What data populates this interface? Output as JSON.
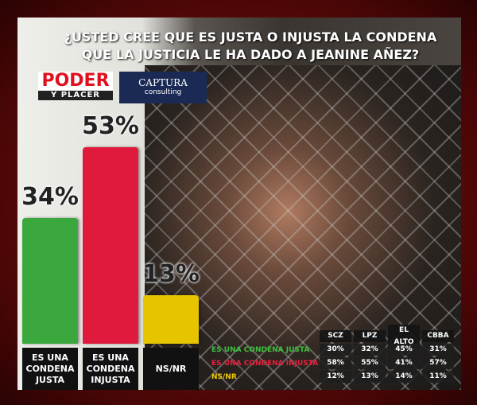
{
  "chart_data": {
    "type": "bar",
    "title": "¿USTED CREE QUE ES JUSTA O INJUSTA LA CONDENA QUE LA JUSTICIA LE HA DADO A JEANINE AÑEZ?",
    "logos": [
      "PODER",
      "Y PLACER",
      "CAPTURA",
      "consulting"
    ],
    "categories": [
      "ES UNA CONDENA JUSTA",
      "ES UNA CONDENA INJUSTA",
      "NS/NR"
    ],
    "values": [
      34,
      53,
      13
    ],
    "value_labels": [
      "34%",
      "53%",
      "13%"
    ],
    "colors": [
      "#3aa83c",
      "#e01a3c",
      "#e6c400"
    ],
    "table": {
      "columns": [
        "SCZ",
        "LPZ",
        "EL ALTO",
        "CBBA"
      ],
      "rows": [
        {
          "label": "ES UNA CONDENA JUSTA",
          "color": "#3fc03f",
          "values": [
            "30%",
            "32%",
            "45%",
            "31%"
          ]
        },
        {
          "label": "ES UNA CONDENA INJUSTA",
          "color": "#e8203e",
          "values": [
            "58%",
            "55%",
            "41%",
            "57%"
          ]
        },
        {
          "label": "NS/NR",
          "color": "#f0cc00",
          "values": [
            "12%",
            "13%",
            "14%",
            "11%"
          ]
        }
      ]
    }
  }
}
